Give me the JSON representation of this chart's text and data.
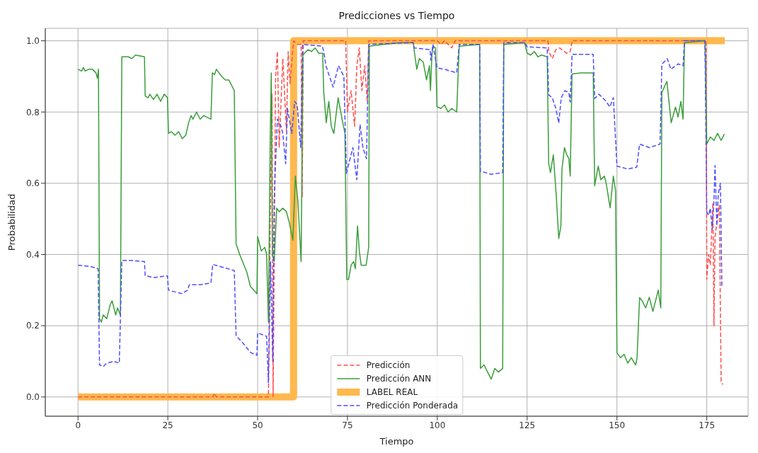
{
  "chart_data": {
    "type": "line",
    "title": "Predicciones vs Tiempo",
    "xlabel": "Tiempo",
    "ylabel": "Probabilidad",
    "xlim": [
      -9.1,
      186.5
    ],
    "xticks": [
      0,
      25,
      50,
      75,
      100,
      125,
      150,
      175
    ],
    "ylim": [
      -0.054,
      1.035
    ],
    "yticks": [
      {
        "value": 0,
        "label": "0.0"
      },
      0.2,
      0.4,
      0.6,
      0.8,
      {
        "value": 1,
        "label": "1.0"
      }
    ],
    "grid": true,
    "legend": "bottom",
    "marker": "none",
    "series": [
      {
        "name": "Predicción",
        "color": "#ff4d4d",
        "line_style": "dashed",
        "x": [
          0,
          37.5,
          38,
          38.5,
          53,
          53.5,
          54,
          54.3,
          55,
          55.5,
          56,
          57,
          58,
          58.5,
          59,
          60,
          61,
          62.1,
          62.4,
          62.7,
          74.5,
          75,
          76,
          77,
          77.6,
          78.3,
          79,
          79.8,
          80.5,
          80.9,
          100,
          101,
          102,
          104,
          105,
          130.8,
          131,
          132,
          133,
          134,
          136,
          137,
          137.5,
          174.8,
          175,
          175.5,
          176,
          176.7,
          177,
          177.3,
          178,
          178.5,
          179,
          179.5
        ],
        "values": [
          0,
          0,
          0.01,
          0,
          0,
          0.5,
          0.85,
          0,
          0.9,
          0.97,
          0.7,
          0.95,
          0.75,
          0.97,
          0.88,
          1,
          0.99,
          0.99,
          0.56,
          1,
          1,
          0.8,
          0.86,
          0.76,
          0.93,
          0.98,
          0.86,
          0.93,
          0.83,
          1,
          1,
          0.99,
          1,
          0.98,
          1,
          1,
          0.97,
          0.95,
          0.975,
          0.98,
          0.965,
          0.97,
          1,
          1,
          0.33,
          0.4,
          0.37,
          0.545,
          0.2,
          0.45,
          0.503,
          0.538,
          0.041,
          0.035
        ]
      },
      {
        "name": "Predicción ANN",
        "color": "#3a9e3a",
        "line_style": "solid",
        "x": [
          0,
          1,
          1.5,
          2,
          3,
          4,
          5,
          5.4,
          5.7,
          6,
          6.5,
          7,
          8,
          9,
          9.5,
          10.5,
          11,
          11.8,
          12.2,
          14,
          15,
          16,
          18.5,
          18.7,
          19.5,
          20,
          21,
          22,
          23,
          24,
          24.9,
          25.2,
          26,
          27,
          28,
          29,
          30,
          30.8,
          31.5,
          32,
          33,
          34,
          35,
          36,
          37,
          37.4,
          38,
          38.5,
          40,
          41,
          42,
          43,
          43.5,
          44,
          45,
          47,
          48,
          49.8,
          50,
          51,
          52,
          52.5,
          53,
          53.5,
          53.8,
          54.1,
          54.6,
          55.3,
          56,
          57,
          58,
          58.8,
          59.8,
          60.5,
          61.2,
          62.1,
          62.6,
          64,
          65,
          66,
          67,
          68.1,
          68.4,
          69.1,
          69.8,
          70.5,
          71.2,
          72.4,
          73.5,
          74.3,
          74.8,
          75.3,
          76,
          76.7,
          77.2,
          77.8,
          78.3,
          78.8,
          80.2,
          80.9,
          81.1,
          85,
          90,
          93.3,
          93.6,
          94.3,
          95,
          96.1,
          97,
          97.8,
          98.1,
          98.5,
          98.8,
          99.5,
          99.9,
          101,
          102,
          103,
          104,
          105.4,
          106.1,
          111.8,
          112,
          113,
          114,
          115,
          116,
          117,
          118.2,
          118.5,
          124.3,
          125,
          126,
          127,
          128,
          129,
          130.6,
          131,
          131.5,
          132.3,
          133.1,
          133.8,
          134.4,
          134.7,
          135.4,
          136,
          136.6,
          137,
          137.5,
          140,
          143.4,
          143.8,
          144.8,
          145.5,
          146.5,
          147,
          148.1,
          149,
          149.6,
          150,
          151,
          152,
          153,
          154,
          155.2,
          155.6,
          156.3,
          157,
          158,
          159,
          160,
          161.5,
          162.2,
          162.5,
          163.9,
          165.1,
          166.3,
          167,
          167.8,
          168.4,
          168.8,
          174.5,
          175,
          176,
          177,
          178,
          179,
          179.9
        ],
        "values": [
          0.92,
          0.915,
          0.925,
          0.915,
          0.92,
          0.92,
          0.91,
          0.895,
          0.92,
          0.22,
          0.21,
          0.23,
          0.22,
          0.26,
          0.27,
          0.23,
          0.25,
          0.23,
          0.955,
          0.955,
          0.95,
          0.96,
          0.955,
          0.845,
          0.84,
          0.85,
          0.835,
          0.85,
          0.83,
          0.85,
          0.84,
          0.74,
          0.745,
          0.735,
          0.745,
          0.725,
          0.735,
          0.77,
          0.79,
          0.78,
          0.8,
          0.78,
          0.79,
          0.785,
          0.78,
          0.91,
          0.905,
          0.92,
          0.9,
          0.89,
          0.89,
          0.87,
          0.86,
          0.43,
          0.4,
          0.35,
          0.31,
          0.29,
          0.45,
          0.41,
          0.42,
          0.4,
          0.21,
          0.73,
          0.91,
          0.4,
          0.38,
          0.53,
          0.52,
          0.53,
          0.52,
          0.49,
          0.44,
          0.62,
          0.55,
          0.38,
          0.96,
          0.975,
          0.97,
          0.98,
          0.965,
          0.965,
          0.855,
          0.77,
          0.83,
          0.76,
          0.74,
          0.84,
          0.78,
          0.74,
          0.33,
          0.33,
          0.37,
          0.38,
          0.36,
          0.48,
          0.41,
          0.37,
          0.37,
          0.42,
          0.985,
          0.99,
          0.995,
          0.995,
          0.97,
          0.92,
          0.95,
          0.94,
          0.89,
          0.93,
          0.86,
          0.96,
          0.985,
          0.98,
          0.815,
          0.81,
          0.82,
          0.8,
          0.81,
          0.8,
          0.985,
          0.99,
          0.08,
          0.09,
          0.07,
          0.05,
          0.08,
          0.07,
          0.08,
          0.99,
          0.995,
          0.965,
          0.96,
          0.97,
          0.955,
          0.96,
          0.955,
          0.655,
          0.63,
          0.68,
          0.566,
          0.445,
          0.48,
          0.64,
          0.7,
          0.68,
          0.67,
          0.62,
          0.907,
          0.91,
          0.91,
          0.593,
          0.648,
          0.61,
          0.62,
          0.6,
          0.531,
          0.62,
          0.58,
          0.124,
          0.11,
          0.12,
          0.095,
          0.11,
          0.09,
          0.11,
          0.279,
          0.27,
          0.25,
          0.28,
          0.24,
          0.3,
          0.25,
          0.855,
          0.886,
          0.77,
          0.814,
          0.786,
          0.83,
          0.78,
          0.995,
          1,
          0.71,
          0.73,
          0.72,
          0.74,
          0.72,
          0.738
        ]
      },
      {
        "name": "LABEL REAL",
        "color": "#ffb84d",
        "line_style": "solid",
        "x": [
          0,
          60,
          60,
          180
        ],
        "values": [
          0,
          0,
          1,
          1
        ]
      },
      {
        "name": "Predicción Ponderada",
        "color": "#4d4dff",
        "line_style": "dashed",
        "x": [
          0,
          2,
          4,
          5.6,
          6,
          7,
          8,
          10,
          11.5,
          12.2,
          15,
          18.5,
          18.7,
          21,
          24.9,
          25.2,
          27,
          29,
          30.5,
          31,
          34,
          37,
          37.5,
          40,
          43.5,
          44,
          46,
          48,
          49.8,
          50,
          52.5,
          53,
          53.6,
          54.2,
          54.6,
          55,
          55.5,
          56.5,
          57,
          57.8,
          58.3,
          59.5,
          60.3,
          61,
          62,
          62.5,
          68,
          68.4,
          69,
          70,
          71,
          72.5,
          74,
          74.7,
          75.5,
          76.5,
          77.6,
          78.5,
          79.3,
          80.3,
          80.9,
          93.3,
          93.6,
          98,
          98.2,
          98.8,
          99.9,
          102,
          105.4,
          106.1,
          111.8,
          112,
          115,
          118.2,
          118.5,
          124.3,
          125,
          130.6,
          131,
          132,
          133,
          133.8,
          134.5,
          135.5,
          136.6,
          137,
          137.5,
          143.4,
          143.8,
          145,
          147,
          148,
          149,
          150,
          153,
          155.5,
          156.3,
          159,
          162,
          162.5,
          164,
          165,
          167,
          168.4,
          168.8,
          174.5,
          175,
          175.5,
          176,
          176.5,
          177,
          177.3,
          177.8,
          178.2,
          178.8,
          179.2
        ],
        "values": [
          0.37,
          0.368,
          0.365,
          0.36,
          0.09,
          0.085,
          0.095,
          0.1,
          0.095,
          0.383,
          0.383,
          0.38,
          0.341,
          0.335,
          0.34,
          0.3,
          0.295,
          0.29,
          0.3,
          0.315,
          0.315,
          0.32,
          0.372,
          0.365,
          0.355,
          0.172,
          0.15,
          0.125,
          0.117,
          0.18,
          0.17,
          0.04,
          0.38,
          0.1,
          0.55,
          0.66,
          0.78,
          0.76,
          0.74,
          0.655,
          0.81,
          0.74,
          0.83,
          0.82,
          0.7,
          0.99,
          0.985,
          0.97,
          0.93,
          0.9,
          0.87,
          0.93,
          0.9,
          0.628,
          0.66,
          0.7,
          0.61,
          0.765,
          0.7,
          0.669,
          0.99,
          0.995,
          0.98,
          0.975,
          0.945,
          0.99,
          0.924,
          0.92,
          0.91,
          0.99,
          0.99,
          0.634,
          0.625,
          0.63,
          0.995,
          0.995,
          0.983,
          0.98,
          0.848,
          0.84,
          0.81,
          0.769,
          0.84,
          0.86,
          0.855,
          0.828,
          0.962,
          0.962,
          0.838,
          0.85,
          0.83,
          0.814,
          0.84,
          0.648,
          0.64,
          0.645,
          0.71,
          0.7,
          0.71,
          0.934,
          0.95,
          0.92,
          0.935,
          0.93,
          1,
          1,
          0.52,
          0.51,
          0.53,
          0.47,
          0.55,
          0.65,
          0.48,
          0.57,
          0.6,
          0.31
        ]
      }
    ]
  }
}
